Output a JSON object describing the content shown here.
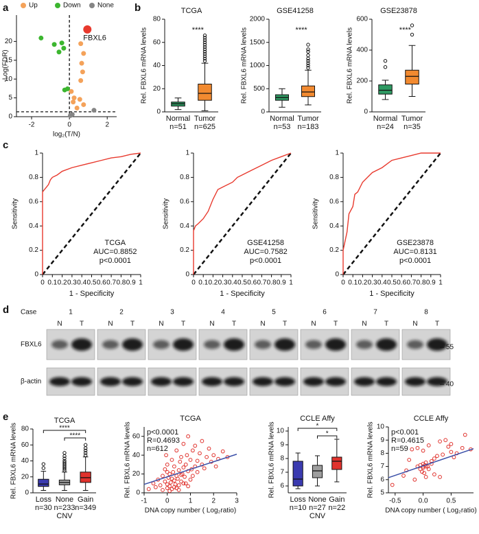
{
  "panel_labels": [
    "a",
    "b",
    "c",
    "d",
    "e"
  ],
  "chart_data": [
    {
      "type": "volcano",
      "xlabel": "log₂(T/N)",
      "ylabel": "-Log(FDR)",
      "xlim": [
        -2.8,
        2.5
      ],
      "xticks": [
        -2,
        0,
        2
      ],
      "ylim": [
        0,
        27
      ],
      "yticks": [
        0,
        5,
        10,
        15,
        20
      ],
      "threshold_x": 0,
      "threshold_y": 1.3,
      "series": [
        {
          "name": "Up",
          "color": "#f4a25a",
          "x": [
            0.6,
            0.75,
            0.65,
            0.7,
            0.6,
            0.1,
            0.25,
            0.2,
            0.75,
            0.4,
            0.55
          ],
          "y": [
            19.4,
            16.8,
            14.2,
            11.9,
            9.6,
            6.7,
            5.0,
            3.9,
            3.2,
            2.3,
            4.6
          ]
        },
        {
          "name": "Down",
          "color": "#3cb62f",
          "x": [
            -1.5,
            -0.8,
            -0.4,
            -0.3,
            -0.55,
            -0.25,
            -0.1
          ],
          "y": [
            20.9,
            19.2,
            19.6,
            18.2,
            17.2,
            7.1,
            7.4
          ]
        },
        {
          "name": "None",
          "color": "#858585",
          "x": [
            1.3,
            0.05,
            0.15
          ],
          "y": [
            1.7,
            0.3,
            0.6
          ]
        }
      ],
      "highlight": {
        "label": "FBXL6",
        "x": 0.95,
        "y": 23.2,
        "color": "#e8392d"
      }
    },
    {
      "type": "box",
      "title": "TCGA",
      "ylabel": "Rel. FBXL6 mRNA levels",
      "ylim": [
        0,
        80
      ],
      "yticks": [
        0,
        20,
        40,
        60,
        80
      ],
      "categories": [
        "Normal",
        "Tumor"
      ],
      "n_labels": [
        "n=51",
        "n=625"
      ],
      "colors": [
        "#2f9a63",
        "#f28a30"
      ],
      "annotation": "****",
      "boxes": [
        {
          "min": 2,
          "q1": 5,
          "median": 7,
          "q3": 8.5,
          "max": 12
        },
        {
          "min": 1,
          "q1": 10,
          "median": 16,
          "q3": 24,
          "max": 42,
          "outliers": [
            44,
            46,
            48,
            50,
            52,
            54,
            56,
            58,
            60,
            62,
            64,
            66
          ]
        }
      ]
    },
    {
      "type": "box",
      "title": "GSE41258",
      "ylabel": "Rel. FBXL6 mRNA levels",
      "ylim": [
        0,
        2000
      ],
      "yticks": [
        0,
        500,
        1000,
        1500,
        2000
      ],
      "categories": [
        "Normal",
        "Tumor"
      ],
      "n_labels": [
        "n=53",
        "n=183"
      ],
      "colors": [
        "#2f9a63",
        "#f28a30"
      ],
      "annotation": "****",
      "boxes": [
        {
          "min": 100,
          "q1": 250,
          "median": 310,
          "q3": 370,
          "max": 500
        },
        {
          "min": 150,
          "q1": 330,
          "median": 430,
          "q3": 560,
          "max": 900,
          "outliers": [
            950,
            1000,
            1050,
            1100,
            1150,
            1220,
            1300,
            1350,
            1450
          ]
        }
      ]
    },
    {
      "type": "box",
      "title": "GSE23878",
      "ylabel": "Rel. FBXL6 mRNA levels",
      "ylim": [
        0,
        600
      ],
      "yticks": [
        0,
        200,
        400,
        600
      ],
      "categories": [
        "Normal",
        "Tumor"
      ],
      "n_labels": [
        "n=24",
        "n=35"
      ],
      "colors": [
        "#2f9a63",
        "#f28a30"
      ],
      "annotation": "****",
      "boxes": [
        {
          "min": 80,
          "q1": 115,
          "median": 140,
          "q3": 175,
          "max": 205,
          "outliers": [
            290,
            330
          ]
        },
        {
          "min": 100,
          "q1": 180,
          "median": 230,
          "q3": 270,
          "max": 430,
          "outliers": [
            500,
            560
          ]
        }
      ]
    },
    {
      "type": "roc",
      "xlabel": "1 - Specificity",
      "ylabel": "Sensitivity",
      "color": "#e8392d",
      "xlim": [
        0,
        1
      ],
      "xticks": [
        0,
        0.1,
        0.2,
        0.3,
        0.4,
        0.5,
        0.6,
        0.7,
        0.8,
        0.9,
        1
      ],
      "ylim": [
        0,
        1
      ],
      "yticks": [
        0,
        0.2,
        0.4,
        0.6,
        0.8,
        1
      ],
      "annotations": [
        "TCGA",
        "AUC=0.8852",
        "p<0.0001"
      ],
      "x": [
        0,
        0,
        0.02,
        0.04,
        0.06,
        0.08,
        0.1,
        0.15,
        0.2,
        0.3,
        0.4,
        0.5,
        0.6,
        0.7,
        0.8,
        0.9,
        1
      ],
      "y": [
        0,
        0.68,
        0.7,
        0.72,
        0.74,
        0.78,
        0.8,
        0.82,
        0.85,
        0.88,
        0.9,
        0.92,
        0.94,
        0.96,
        0.97,
        0.99,
        1
      ]
    },
    {
      "type": "roc",
      "xlabel": "1 - Specificity",
      "ylabel": "Sensitivity",
      "color": "#e8392d",
      "xlim": [
        0,
        1
      ],
      "xticks": [
        0,
        0.1,
        0.2,
        0.3,
        0.4,
        0.5,
        0.6,
        0.7,
        0.8,
        0.9,
        1
      ],
      "ylim": [
        0,
        1
      ],
      "yticks": [
        0,
        0.2,
        0.4,
        0.6,
        0.8,
        1
      ],
      "annotations": [
        "GSE41258",
        "AUC=0.7582",
        "p<0.0001"
      ],
      "x": [
        0,
        0,
        0.02,
        0.05,
        0.1,
        0.15,
        0.2,
        0.25,
        0.3,
        0.4,
        0.45,
        0.5,
        0.6,
        0.7,
        0.8,
        0.9,
        1
      ],
      "y": [
        0,
        0.36,
        0.4,
        0.42,
        0.46,
        0.52,
        0.62,
        0.7,
        0.72,
        0.76,
        0.8,
        0.82,
        0.86,
        0.9,
        0.94,
        0.97,
        1
      ]
    },
    {
      "type": "roc",
      "xlabel": "1 - Specificity",
      "ylabel": "Sensitivity",
      "color": "#e8392d",
      "xlim": [
        0,
        1
      ],
      "xticks": [
        0,
        0.1,
        0.2,
        0.3,
        0.4,
        0.5,
        0.6,
        0.7,
        0.8,
        0.9,
        1
      ],
      "ylim": [
        0,
        1
      ],
      "yticks": [
        0,
        0.2,
        0.4,
        0.6,
        0.8,
        1
      ],
      "annotations": [
        "GSE23878",
        "AUC=0.8131",
        "p<0.0001"
      ],
      "x": [
        0,
        0,
        0.04,
        0.06,
        0.1,
        0.12,
        0.15,
        0.2,
        0.25,
        0.3,
        0.4,
        0.5,
        0.6,
        0.7,
        0.8,
        1
      ],
      "y": [
        0,
        0.2,
        0.35,
        0.5,
        0.56,
        0.66,
        0.68,
        0.76,
        0.8,
        0.84,
        0.88,
        0.94,
        0.96,
        0.98,
        1,
        1
      ]
    },
    {
      "type": "box",
      "title": "TCGA",
      "ylabel": "Rel. FBXL6 mRNA levels",
      "xlabel": "CNV",
      "ylim": [
        0,
        80
      ],
      "yticks": [
        0,
        20,
        40,
        60,
        80
      ],
      "categories": [
        "Loss",
        "None",
        "Gain"
      ],
      "n_labels": [
        "n=30",
        "n=233",
        "n=349"
      ],
      "colors": [
        "#3b3bb0",
        "#9e9e9e",
        "#e0322d"
      ],
      "comparisons": [
        {
          "groups": [
            0,
            2
          ],
          "label": "****"
        },
        {
          "groups": [
            1,
            2
          ],
          "label": "****"
        }
      ],
      "boxes": [
        {
          "min": 3,
          "q1": 8,
          "median": 11,
          "q3": 17,
          "max": 27,
          "outliers": [
            31,
            36
          ]
        },
        {
          "min": 3,
          "q1": 10,
          "median": 13,
          "q3": 16,
          "max": 26,
          "outliers": [
            28,
            30,
            32,
            34,
            36,
            38,
            40,
            43,
            46,
            50
          ]
        },
        {
          "min": 3,
          "q1": 13,
          "median": 19,
          "q3": 26,
          "max": 45,
          "outliers": [
            47,
            50,
            53,
            56,
            60
          ]
        }
      ]
    },
    {
      "type": "scatter",
      "title": "TCGA",
      "ylabel": "Rel. FBXL6 mRNA levels",
      "xlabel": "DNA copy number ( Log₂ratio)",
      "color": "#e0322d",
      "xlim": [
        -1,
        3
      ],
      "xticks": [
        -1,
        0,
        1,
        2,
        3
      ],
      "ylim": [
        0,
        70
      ],
      "yticks": [
        0,
        20,
        40,
        60
      ],
      "annotations": [
        "p<0.0001",
        "R=0.4693",
        "n=612"
      ],
      "fit": {
        "x": [
          -1,
          3
        ],
        "y": [
          9,
          41
        ],
        "color": "#3a4fa8"
      },
      "x": [
        -0.8,
        -0.6,
        -0.5,
        -0.4,
        -0.3,
        -0.2,
        -0.2,
        -0.1,
        -0.1,
        0,
        0,
        0,
        0.05,
        0.1,
        0.1,
        0.15,
        0.2,
        0.2,
        0.25,
        0.3,
        0.3,
        0.35,
        0.4,
        0.4,
        0.45,
        0.5,
        0.5,
        0.55,
        0.6,
        0.6,
        0.65,
        0.7,
        0.7,
        0.75,
        0.8,
        0.8,
        0.85,
        0.9,
        0.9,
        1,
        1,
        1.05,
        1.1,
        1.1,
        1.2,
        1.2,
        1.3,
        1.3,
        1.4,
        1.5,
        1.5,
        1.6,
        1.7,
        1.8,
        1.9,
        2,
        2.1,
        2.2,
        2.4,
        2.6,
        0.1,
        0.3,
        0.5,
        0.7,
        0.9,
        0.2,
        0.4,
        0.6,
        0.0,
        -0.05
      ],
      "y": [
        4,
        10,
        6,
        14,
        8,
        3,
        18,
        12,
        25,
        5,
        9,
        30,
        16,
        7,
        20,
        11,
        4,
        35,
        22,
        13,
        28,
        9,
        18,
        45,
        15,
        24,
        8,
        33,
        12,
        38,
        20,
        27,
        52,
        17,
        10,
        30,
        40,
        23,
        60,
        14,
        35,
        25,
        45,
        18,
        28,
        50,
        22,
        34,
        42,
        30,
        55,
        26,
        38,
        47,
        33,
        40,
        28,
        36,
        44,
        38,
        2,
        6,
        3,
        10,
        7,
        15,
        5,
        19,
        22,
        40
      ]
    },
    {
      "type": "box",
      "title": "CCLE Affy",
      "ylabel": "Rel. FBXL6 mRNA levels",
      "xlabel": "CNV",
      "ylim": [
        5.5,
        10.3
      ],
      "yticks": [
        6,
        7,
        8,
        9,
        10
      ],
      "categories": [
        "Loss",
        "None",
        "Gain"
      ],
      "n_labels": [
        "n=10",
        "n=27",
        "n=22"
      ],
      "colors": [
        "#3b3bb0",
        "#9e9e9e",
        "#e0322d"
      ],
      "comparisons": [
        {
          "groups": [
            0,
            2
          ],
          "label": "*"
        },
        {
          "groups": [
            1,
            2
          ],
          "label": "*"
        }
      ],
      "boxes": [
        {
          "min": 5.8,
          "q1": 6.0,
          "median": 6.5,
          "q3": 7.8,
          "max": 8.4
        },
        {
          "min": 6.0,
          "q1": 6.6,
          "median": 7.1,
          "q3": 7.5,
          "max": 8.2
        },
        {
          "min": 6.3,
          "q1": 7.2,
          "median": 7.8,
          "q3": 8.1,
          "max": 9.4
        }
      ]
    },
    {
      "type": "scatter",
      "title": "CCLE Affy",
      "ylabel": "Rel. FBXL6 mRNA levels",
      "xlabel": "DNA copy number ( Log₂ratio)",
      "color": "#e0322d",
      "xlim": [
        -0.62,
        0.9
      ],
      "xticks": [
        -0.5,
        {
          "value": 0,
          "label": "0.0"
        },
        0.5
      ],
      "ylim": [
        5,
        10
      ],
      "yticks": [
        5,
        6,
        7,
        8,
        9,
        10
      ],
      "annotations": [
        "p<0.001",
        "R=0.4615",
        "n=59"
      ],
      "fit": {
        "x": [
          -0.62,
          0.9
        ],
        "y": [
          6.15,
          8.35
        ],
        "color": "#3a4fa8"
      },
      "x": [
        -0.55,
        -0.3,
        -0.25,
        -0.2,
        -0.15,
        -0.1,
        -0.1,
        -0.05,
        -0.05,
        0,
        0,
        0,
        0,
        0.02,
        0.03,
        0.05,
        0.05,
        0.08,
        0.1,
        0.1,
        0.15,
        0.2,
        0.2,
        0.25,
        0.3,
        0.3,
        0.35,
        0.4,
        0.45,
        0.5,
        0.5,
        0.55,
        0.6,
        0.7,
        0.75,
        0.85,
        -0.35,
        0.05,
        0.15,
        -0.02
      ],
      "y": [
        5.6,
        6.7,
        7.5,
        8.3,
        6.0,
        7.0,
        8.4,
        6.8,
        7.1,
        6.9,
        7.0,
        7.2,
        8.2,
        6.5,
        7.1,
        6.2,
        7.3,
        7.0,
        6.8,
        8.6,
        7.4,
        6.4,
        7.6,
        7.8,
        8.9,
        6.2,
        7.9,
        9.0,
        8.5,
        8.1,
        8.7,
        7.7,
        8.0,
        8.4,
        9.4,
        8.3,
        6.3,
        7.0,
        7.2,
        6.6
      ]
    }
  ],
  "blot": {
    "case_label": "Case",
    "cases": [
      "1",
      "2",
      "3",
      "4",
      "5",
      "6",
      "7",
      "8"
    ],
    "lanes": [
      "N",
      "T"
    ],
    "rows": [
      "FBXL6",
      "β-actin"
    ],
    "markers": [
      "55",
      "40"
    ]
  }
}
